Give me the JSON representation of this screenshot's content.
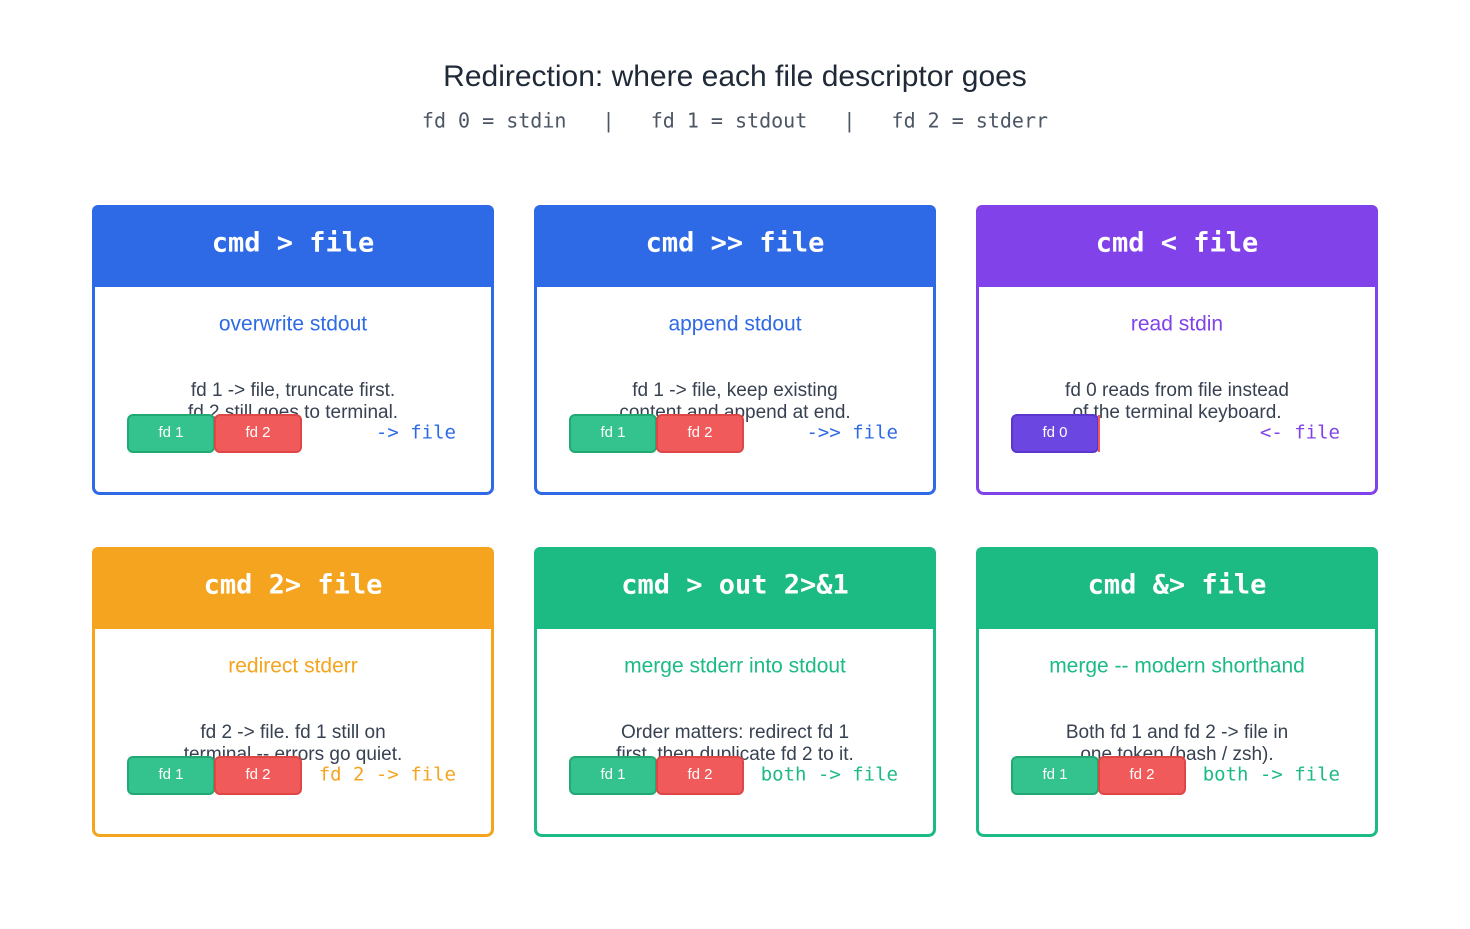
{
  "header": {
    "title": "Redirection: where each file descriptor goes",
    "subtitle": "fd 0 = stdin   |   fd 1 = stdout   |   fd 2 = stderr"
  },
  "cards": [
    {
      "command": "cmd > file",
      "label": "overwrite stdout",
      "description": [
        "fd 1 -> file, truncate first.",
        "fd 2 still goes to terminal."
      ],
      "pills": [
        "fd 1",
        "fd 2"
      ],
      "arrow": "-> file",
      "color": "#2f6ae6"
    },
    {
      "command": "cmd >> file",
      "label": "append stdout",
      "description": [
        "fd 1 -> file, keep existing",
        "content and append at end."
      ],
      "pills": [
        "fd 1",
        "fd 2"
      ],
      "arrow": "->> file",
      "color": "#2f6ae6"
    },
    {
      "command": "cmd < file",
      "label": "read stdin",
      "description": [
        "fd 0 reads from file instead",
        "of the terminal keyboard."
      ],
      "pills": [
        "fd 0"
      ],
      "arrow": "<- file",
      "color": "#8142ea"
    },
    {
      "command": "cmd 2> file",
      "label": "redirect stderr",
      "description": [
        "fd 2 -> file. fd 1 still on",
        "terminal -- errors go quiet."
      ],
      "pills": [
        "fd 1",
        "fd 2"
      ],
      "arrow": "fd 2 -> file",
      "color": "#f4a41e"
    },
    {
      "command": "cmd > out 2>&1",
      "label": "merge stderr into stdout",
      "description": [
        "Order matters: redirect fd 1",
        "first, then duplicate fd 2 to it."
      ],
      "pills": [
        "fd 1",
        "fd 2"
      ],
      "arrow": "both -> file",
      "color": "#1dbb84"
    },
    {
      "command": "cmd &> file",
      "label": "merge -- modern shorthand",
      "description": [
        "Both fd 1 and fd 2 -> file in",
        "one token (bash / zsh)."
      ],
      "pills": [
        "fd 1",
        "fd 2"
      ],
      "arrow": "both -> file",
      "color": "#1dbb84"
    }
  ]
}
